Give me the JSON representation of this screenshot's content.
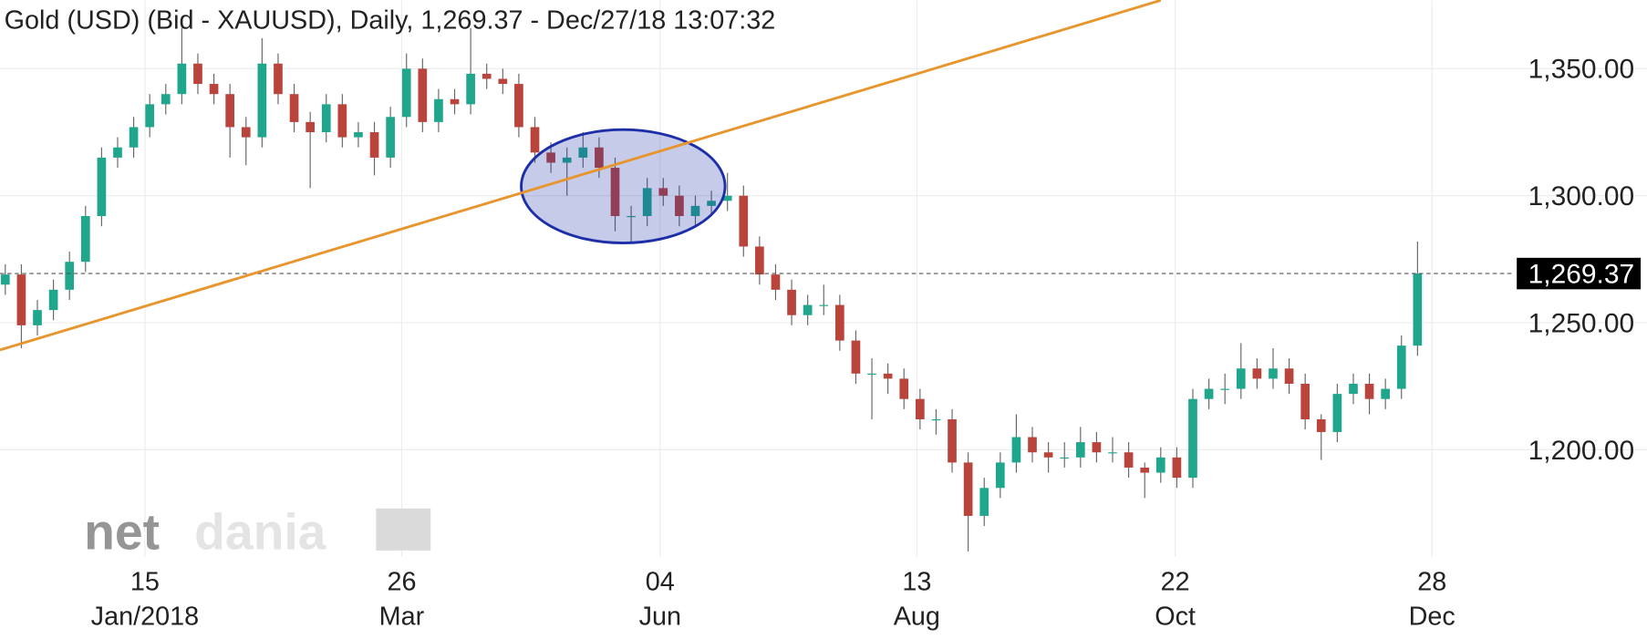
{
  "chart_data": {
    "type": "candlestick",
    "title": "Gold (USD) (Bid - XAUUSD),  Daily, 1,269.37 - Dec/27/18 13:07:32",
    "watermark": [
      "net",
      "dania"
    ],
    "up_color": "#1fa68c",
    "down_color": "#b8443c",
    "grid": true,
    "xlim": [
      -0.33,
      102.3
    ],
    "ylim": [
      1157.9,
      1376.9
    ],
    "yticks": [
      {
        "value": 1200,
        "label": "1,200.00"
      },
      {
        "value": 1250,
        "label": "1,250.00"
      },
      {
        "value": 1300,
        "label": "1,300.00"
      },
      {
        "value": 1350,
        "label": "1,350.00"
      }
    ],
    "xticks": [
      {
        "value": 8.7,
        "label": "15",
        "month": "Jan/2018"
      },
      {
        "value": 24.7,
        "label": "26",
        "month": "Mar"
      },
      {
        "value": 40.8,
        "label": "04",
        "month": "Jun"
      },
      {
        "value": 56.8,
        "label": "13",
        "month": "Aug"
      },
      {
        "value": 72.9,
        "label": "22",
        "month": "Oct"
      },
      {
        "value": 88.9,
        "label": "28",
        "month": "Dec"
      }
    ],
    "current_price": {
      "value": 1269.37,
      "label": "1,269.37"
    },
    "trendline": {
      "x": [
        -0.33,
        72
      ],
      "y": [
        1239.3,
        1376.9
      ],
      "color": "#e8952e"
    },
    "highlight": {
      "x": 38.5,
      "y": 1303.7,
      "rx": 6.35,
      "ry": 22.3,
      "color": "#1d2fa8"
    },
    "open": [
      1265,
      1269,
      1249,
      1255,
      1263,
      1274,
      1292,
      1315,
      1319,
      1327,
      1336,
      1340,
      1352,
      1344,
      1340,
      1327,
      1323,
      1352,
      1340,
      1329,
      1325,
      1336,
      1323,
      1325,
      1315,
      1331,
      1350,
      1329,
      1338,
      1336,
      1348,
      1346,
      1344,
      1327,
      1317,
      1313,
      1315,
      1319,
      1311,
      1292,
      1292,
      1303,
      1300,
      1292,
      1296,
      1298,
      1300,
      1280,
      1269,
      1263,
      1253,
      1257,
      1257,
      1243,
      1230,
      1230,
      1228,
      1220,
      1212,
      1212,
      1195,
      1174,
      1185,
      1195,
      1205,
      1199,
      1197,
      1197,
      1203,
      1199,
      1199,
      1193,
      1191,
      1197,
      1189,
      1220,
      1224,
      1224,
      1232,
      1228,
      1232,
      1226,
      1212,
      1207,
      1222,
      1226,
      1220,
      1224,
      1241
    ],
    "high": [
      1273,
      1273,
      1259,
      1267,
      1278,
      1296,
      1319,
      1323,
      1331,
      1340,
      1344,
      1366,
      1356,
      1348,
      1344,
      1331,
      1362,
      1356,
      1344,
      1333,
      1340,
      1340,
      1329,
      1329,
      1335,
      1356,
      1354,
      1342,
      1342,
      1366,
      1352,
      1350,
      1348,
      1331,
      1321,
      1319,
      1325,
      1323,
      1315,
      1296,
      1307,
      1307,
      1304,
      1300,
      1302,
      1309,
      1304,
      1284,
      1273,
      1267,
      1261,
      1265,
      1261,
      1247,
      1236,
      1234,
      1232,
      1224,
      1216,
      1216,
      1199,
      1189,
      1199,
      1214,
      1209,
      1203,
      1203,
      1209,
      1207,
      1205,
      1203,
      1195,
      1201,
      1201,
      1224,
      1228,
      1230,
      1242,
      1236,
      1240,
      1236,
      1230,
      1214,
      1226,
      1230,
      1230,
      1228,
      1245,
      1282
    ],
    "low": [
      1261,
      1240,
      1245,
      1251,
      1259,
      1270,
      1288,
      1311,
      1315,
      1323,
      1332,
      1336,
      1340,
      1336,
      1315,
      1312,
      1319,
      1336,
      1325,
      1303,
      1321,
      1319,
      1319,
      1308,
      1311,
      1327,
      1325,
      1325,
      1332,
      1332,
      1342,
      1340,
      1323,
      1313,
      1309,
      1300,
      1311,
      1307,
      1286,
      1282,
      1288,
      1296,
      1288,
      1288,
      1292,
      1294,
      1276,
      1265,
      1259,
      1249,
      1249,
      1253,
      1239,
      1226,
      1212,
      1222,
      1216,
      1208,
      1206,
      1191,
      1160,
      1170,
      1181,
      1191,
      1195,
      1191,
      1193,
      1193,
      1195,
      1195,
      1189,
      1181,
      1187,
      1185,
      1185,
      1216,
      1218,
      1220,
      1224,
      1224,
      1222,
      1208,
      1196,
      1203,
      1218,
      1214,
      1216,
      1220,
      1237
    ],
    "close": [
      1269,
      1249,
      1255,
      1263,
      1274,
      1292,
      1315,
      1319,
      1327,
      1336,
      1340,
      1352,
      1344,
      1340,
      1327,
      1323,
      1352,
      1340,
      1329,
      1325,
      1336,
      1323,
      1325,
      1315,
      1331,
      1350,
      1329,
      1338,
      1336,
      1348,
      1346,
      1344,
      1327,
      1317,
      1313,
      1315,
      1319,
      1311,
      1292,
      1292,
      1303,
      1300,
      1292,
      1296,
      1298,
      1300,
      1280,
      1269,
      1263,
      1253,
      1257,
      1257,
      1243,
      1230,
      1230,
      1228,
      1220,
      1212,
      1212,
      1195,
      1174,
      1185,
      1195,
      1205,
      1199,
      1197,
      1197,
      1203,
      1199,
      1199,
      1193,
      1191,
      1197,
      1189,
      1220,
      1224,
      1224,
      1232,
      1228,
      1232,
      1226,
      1212,
      1207,
      1222,
      1226,
      1220,
      1224,
      1241,
      1269.37
    ]
  }
}
